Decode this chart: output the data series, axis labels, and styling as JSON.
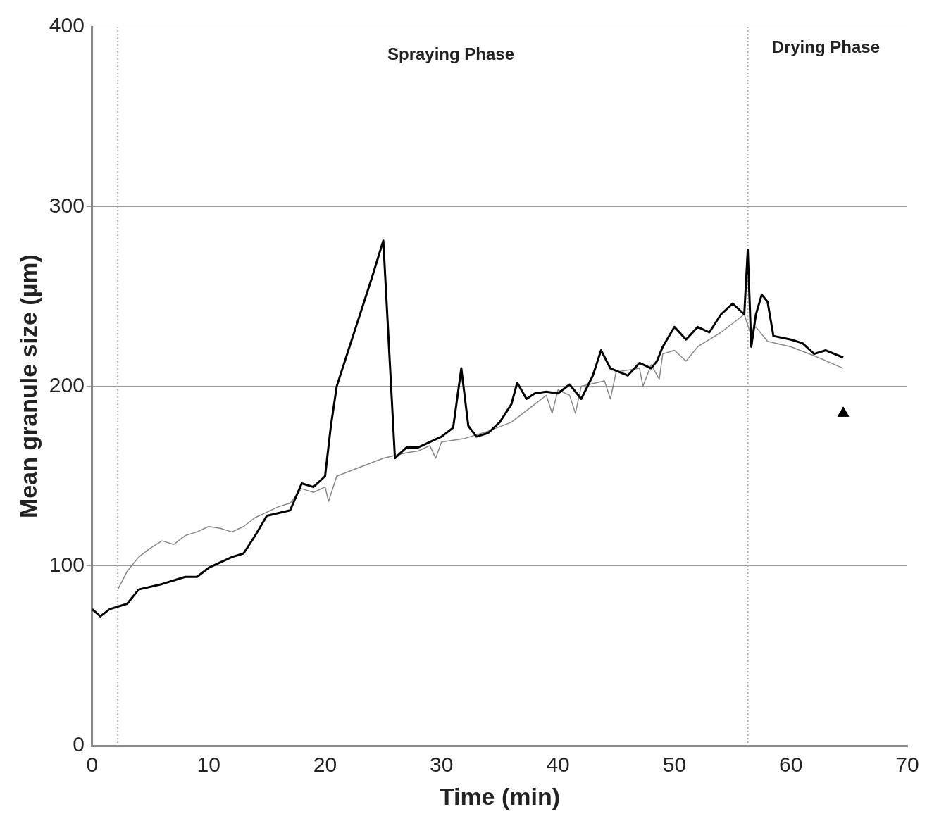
{
  "chart_data": {
    "type": "line",
    "xlabel": "Time (min)",
    "ylabel": "Mean granule size (µm)",
    "xlim": [
      0,
      70
    ],
    "xticks": [
      0,
      10,
      20,
      30,
      40,
      50,
      60,
      70
    ],
    "ylim": [
      0,
      400
    ],
    "yticks": [
      0,
      100,
      200,
      300,
      400
    ],
    "grid": "y",
    "legend": false,
    "marker": "none",
    "line_style": "solid",
    "ref_lines": [
      {
        "axis": "x",
        "value": 2.2,
        "color": "#aaaaaa",
        "line_style": "dotted"
      },
      {
        "axis": "x",
        "value": 56.3,
        "color": "#aaaaaa",
        "line_style": "dotted"
      }
    ],
    "annotations": [
      "Spraying Phase",
      "Drying Phase"
    ],
    "series": [
      {
        "color": "#000000",
        "x": [
          0,
          0.7,
          1.5,
          3,
          4,
          6,
          8,
          9,
          10,
          12,
          13,
          14,
          15,
          17,
          18,
          19,
          20,
          20.5,
          21,
          22,
          24,
          25,
          26,
          27,
          28,
          30,
          31,
          31.7,
          32.3,
          33,
          34,
          35,
          36,
          36.5,
          37.3,
          38,
          39,
          40,
          41,
          42,
          43,
          43.7,
          44.5,
          46,
          47,
          48,
          48.5,
          49,
          50,
          51,
          52,
          53,
          54,
          55,
          56,
          56.3,
          56.6,
          57,
          57.5,
          58,
          58.5,
          60,
          61,
          62,
          63,
          64.5
        ],
        "values": [
          76,
          72,
          76,
          79,
          87,
          90,
          94,
          94,
          99,
          105,
          107,
          117,
          128,
          131,
          146,
          144,
          150,
          178,
          200,
          220,
          260,
          281,
          160,
          166,
          166,
          172,
          177,
          210,
          178,
          172,
          174,
          180,
          190,
          202,
          193,
          196,
          197,
          196,
          201,
          193,
          206,
          220,
          210,
          206,
          213,
          210,
          214,
          222,
          233,
          226,
          233,
          230,
          240,
          246,
          240,
          276,
          222,
          240,
          251,
          247,
          228,
          226,
          224,
          218,
          220,
          216
        ]
      },
      {
        "color": "#888888",
        "x": [
          2.2,
          3,
          4,
          5,
          6,
          7,
          8,
          9,
          10,
          11,
          12,
          13,
          14,
          15,
          16,
          17,
          18,
          19,
          20,
          20.3,
          21,
          23,
          25,
          27,
          28,
          29,
          29.5,
          30,
          32,
          34,
          36,
          38,
          39,
          39.5,
          40,
          41,
          41.5,
          42,
          44,
          44.5,
          45,
          47,
          47.3,
          48,
          48.7,
          49,
          50,
          51,
          52,
          54,
          56,
          56.5,
          57,
          58,
          60,
          62,
          64.5
        ],
        "values": [
          87,
          97,
          105,
          110,
          114,
          112,
          117,
          119,
          122,
          121,
          119,
          122,
          127,
          130,
          133,
          135,
          143,
          141,
          144,
          136,
          150,
          155,
          160,
          163,
          164,
          167,
          160,
          169,
          171,
          175,
          180,
          190,
          195,
          185,
          198,
          195,
          185,
          200,
          203,
          193,
          208,
          210,
          200,
          212,
          204,
          218,
          220,
          214,
          222,
          230,
          240,
          230,
          233,
          225,
          222,
          217,
          210
        ]
      },
      {
        "type": "scatter",
        "marker": "triangle",
        "color": "#000000",
        "x": [
          64.5
        ],
        "values": [
          185
        ]
      }
    ]
  }
}
